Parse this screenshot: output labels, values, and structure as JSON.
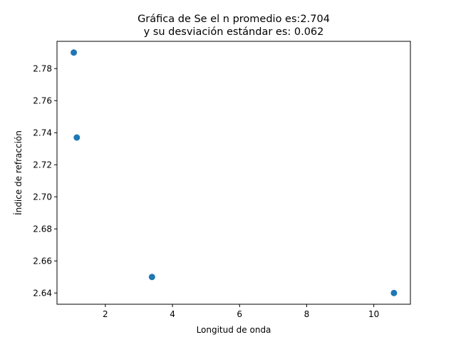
{
  "chart_data": {
    "type": "scatter",
    "title_lines": [
      "Gráfica de Se el n promedio es:2.704",
      "y su desviación estándar es: 0.062"
    ],
    "xlabel": "Longitud de onda",
    "ylabel": "Índice de refracción",
    "xlim": [
      0.56,
      11.09
    ],
    "ylim": [
      2.633,
      2.797
    ],
    "xticks": [
      2,
      4,
      6,
      8,
      10
    ],
    "yticks": [
      2.64,
      2.66,
      2.68,
      2.7,
      2.72,
      2.74,
      2.76,
      2.78
    ],
    "ytick_labels": [
      "2.64",
      "2.66",
      "2.68",
      "2.70",
      "2.72",
      "2.74",
      "2.76",
      "2.78"
    ],
    "series": [
      {
        "x": [
          1.06,
          1.15,
          3.39,
          10.6
        ],
        "y": [
          2.79,
          2.737,
          2.65,
          2.64
        ],
        "color": "#1f77b4"
      }
    ],
    "grid": false,
    "legend": "none"
  }
}
